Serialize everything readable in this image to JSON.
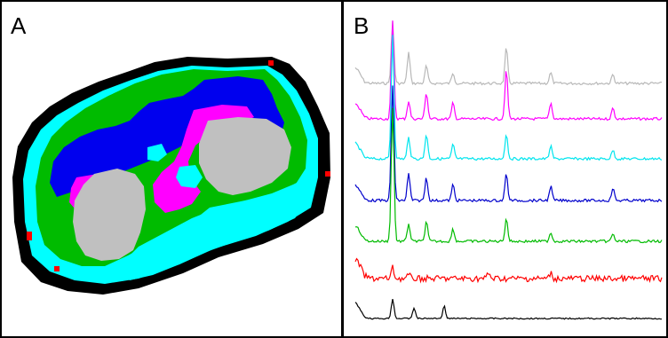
{
  "panels": {
    "a": {
      "label": "A"
    },
    "b": {
      "label": "B"
    }
  },
  "colors": {
    "outer": "#000000",
    "fringe": "#00ffff",
    "green": "#00bb00",
    "blue": "#0000ee",
    "magenta": "#ff00ff",
    "gray": "#c0c0c0",
    "red": "#ff0000"
  },
  "spectra": {
    "order": [
      "gray",
      "magenta",
      "cyan",
      "blue",
      "green",
      "red",
      "black"
    ],
    "colors": [
      "#b8b8b8",
      "#ff00ff",
      "#00e5ee",
      "#0000cc",
      "#00bb00",
      "#ff0000",
      "#000000"
    ]
  }
}
